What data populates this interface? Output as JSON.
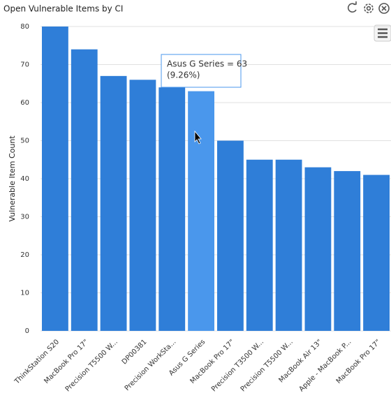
{
  "chart_data": {
    "type": "bar",
    "title": "Open Vulnerable Items by CI",
    "y_label": "Vulnerable Item Count",
    "categories": [
      "ThinkStation S20",
      "MacBook Pro 17\"",
      "Precision T5500 W...",
      "DP00381",
      "Precision WorkSta...",
      "Asus G Series",
      "MacBook Pro 17\"",
      "Precision T3500 W...",
      "Precision T5500 W...",
      "MacBook Air 13\"",
      "Apple - MacBook P...",
      "MacBook Pro 17\""
    ],
    "values": [
      80,
      74,
      67,
      66,
      64,
      63,
      50,
      45,
      45,
      43,
      42,
      41
    ],
    "colors": [
      "#2f7ed8",
      "#2f7ed8",
      "#2f7ed8",
      "#2f7ed8",
      "#2f7ed8",
      "#4a97ec",
      "#2f7ed8",
      "#2f7ed8",
      "#2f7ed8",
      "#2f7ed8",
      "#2f7ed8",
      "#2f7ed8"
    ],
    "ylim": [
      0,
      80
    ],
    "yticks": [
      0,
      10,
      20,
      30,
      40,
      50,
      60,
      70,
      80
    ],
    "grid": true,
    "tooltip": [
      "Asus G Series = 63",
      "(9.26%)"
    ]
  }
}
